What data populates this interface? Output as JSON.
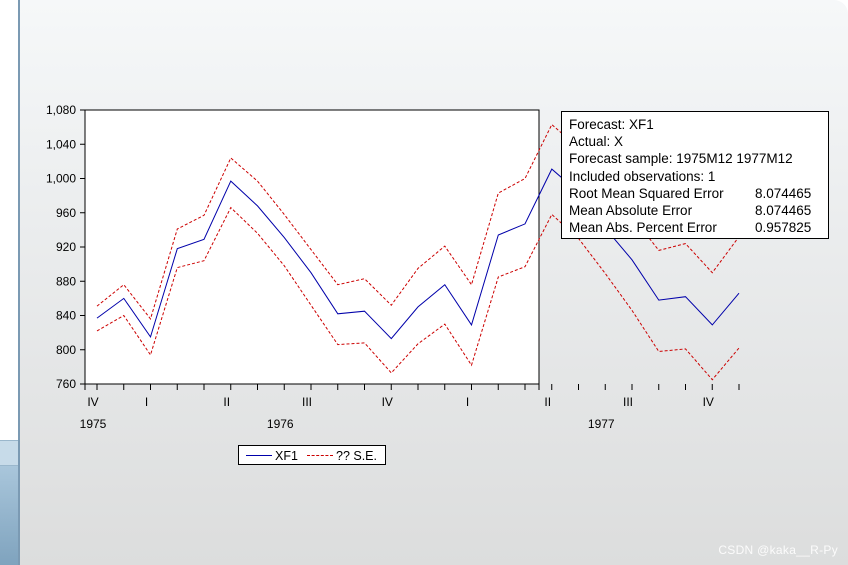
{
  "chart_data": {
    "type": "line",
    "title": "",
    "xlabel": "",
    "ylabel": "",
    "ylim": [
      760,
      1080
    ],
    "yticks": [
      760,
      800,
      840,
      880,
      920,
      960,
      1000,
      1040,
      1080
    ],
    "ytick_labels": [
      "760",
      "800",
      "840",
      "880",
      "920",
      "960",
      "1,000",
      "1,040",
      "1,080"
    ],
    "x": [
      "1975M12",
      "1976M01",
      "1976M02",
      "1976M03",
      "1976M04",
      "1976M05",
      "1976M06",
      "1976M07",
      "1976M08",
      "1976M09",
      "1976M10",
      "1976M11",
      "1976M12",
      "1977M01",
      "1977M02",
      "1977M03",
      "1977M04",
      "1977M05",
      "1977M06",
      "1977M07",
      "1977M08",
      "1977M09",
      "1977M10",
      "1977M11",
      "1977M12"
    ],
    "quarter_labels": [
      {
        "label": "IV",
        "index": 0
      },
      {
        "label": "I",
        "index": 2
      },
      {
        "label": "II",
        "index": 5
      },
      {
        "label": "III",
        "index": 8
      },
      {
        "label": "IV",
        "index": 11
      },
      {
        "label": "I",
        "index": 14
      },
      {
        "label": "II",
        "index": 17
      },
      {
        "label": "III",
        "index": 20
      },
      {
        "label": "IV",
        "index": 23
      }
    ],
    "year_labels": [
      {
        "label": "1975",
        "index": 0
      },
      {
        "label": "1976",
        "index": 7
      },
      {
        "label": "1977",
        "index": 19
      }
    ],
    "series": [
      {
        "name": "XF1",
        "color": "#0000aa",
        "style": "solid",
        "values": [
          837,
          860,
          815,
          918,
          929,
          997,
          968,
          931,
          890,
          842,
          845,
          813,
          850,
          876,
          829,
          934,
          947,
          1011,
          984,
          942,
          905,
          858,
          862,
          829,
          866
        ]
      },
      {
        "name": "?? S.E.",
        "color": "#cc0000",
        "style": "dashed",
        "values": [
          851,
          876,
          836,
          941,
          957,
          1024,
          997,
          958,
          917,
          876,
          883,
          852,
          895,
          921,
          876,
          983,
          1000,
          1063,
          1036,
          993,
          956,
          916,
          924,
          890,
          932
        ]
      },
      {
        "name": "?? S.E.",
        "color": "#cc0000",
        "style": "dashed",
        "values": [
          822,
          840,
          794,
          896,
          904,
          966,
          936,
          898,
          852,
          806,
          808,
          773,
          807,
          830,
          782,
          885,
          897,
          958,
          930,
          889,
          846,
          798,
          801,
          765,
          802
        ]
      }
    ],
    "legend": {
      "placement": "bottom-center",
      "entries": [
        {
          "name": "XF1",
          "color": "#0000aa",
          "style": "solid"
        },
        {
          "name": "?? S.E.",
          "color": "#cc0000",
          "style": "dashed"
        }
      ]
    },
    "grid": false
  },
  "stats": {
    "forecast": "Forecast: XF1",
    "actual": "Actual: X",
    "sample": "Forecast sample: 1975M12 1977M12",
    "included": "Included observations: 1",
    "rows": [
      {
        "label": "Root Mean Squared Error",
        "value": "8.074465"
      },
      {
        "label": "Mean Absolute Error",
        "value": "8.074465"
      },
      {
        "label": "Mean Abs. Percent Error",
        "value": "0.957825"
      }
    ]
  },
  "watermark": "CSDN @kaka__R-Py"
}
